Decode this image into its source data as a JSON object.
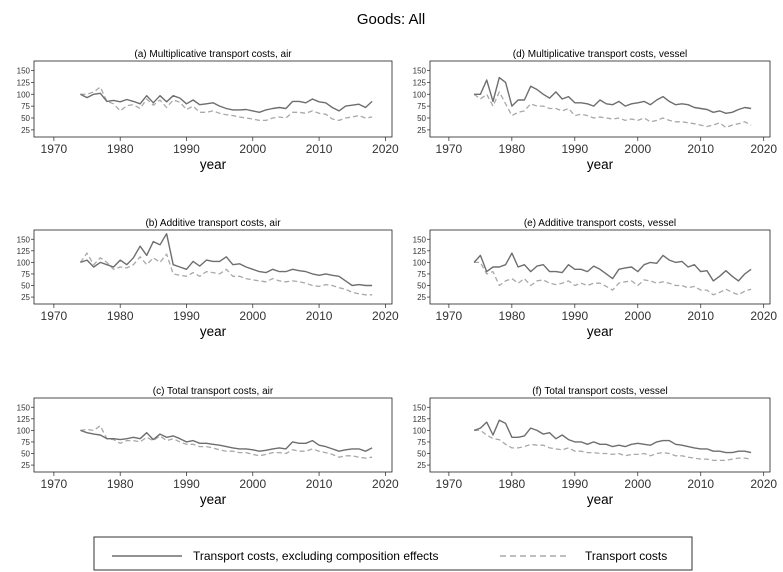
{
  "figure": {
    "title": "Goods: All",
    "legend": {
      "items": [
        {
          "label": "Transport costs, excluding composition effects",
          "color": "#6e6e6e",
          "style": "solid"
        },
        {
          "label": "Transport costs",
          "color": "#a8a8a8",
          "style": "dashed"
        }
      ]
    }
  },
  "chart_data": [
    {
      "type": "line",
      "title": "(a) Multiplicative transport costs, air",
      "xlabel": "year",
      "ylabel": "",
      "xlim": [
        1967,
        2021
      ],
      "ylim": [
        10,
        170
      ],
      "xticks": [
        1970,
        1980,
        1990,
        2000,
        2010,
        2020
      ],
      "yticks": [
        25,
        50,
        75,
        100,
        125,
        150
      ],
      "x_start": 1974,
      "series": [
        {
          "name": "Transport costs, excluding composition effects",
          "values": [
            100,
            93,
            100,
            102,
            85,
            87,
            84,
            89,
            85,
            80,
            97,
            82,
            97,
            84,
            97,
            92,
            80,
            88,
            78,
            80,
            82,
            75,
            70,
            67,
            67,
            68,
            65,
            62,
            67,
            70,
            72,
            70,
            85,
            85,
            82,
            90,
            84,
            82,
            72,
            65,
            75,
            77,
            79,
            72,
            85
          ]
        },
        {
          "name": "Transport costs",
          "values": [
            100,
            100,
            105,
            115,
            85,
            80,
            65,
            76,
            78,
            70,
            90,
            77,
            88,
            72,
            88,
            83,
            68,
            75,
            62,
            62,
            65,
            60,
            57,
            55,
            52,
            50,
            48,
            45,
            45,
            50,
            52,
            50,
            62,
            62,
            60,
            65,
            60,
            58,
            48,
            45,
            50,
            52,
            55,
            50,
            52
          ]
        }
      ]
    },
    {
      "type": "line",
      "title": "(d) Multiplicative transport costs, vessel",
      "xlabel": "year",
      "ylabel": "",
      "xlim": [
        1967,
        2021
      ],
      "ylim": [
        10,
        170
      ],
      "xticks": [
        1970,
        1980,
        1990,
        2000,
        2010,
        2020
      ],
      "yticks": [
        25,
        50,
        75,
        100,
        125,
        150
      ],
      "x_start": 1974,
      "series": [
        {
          "name": "Transport costs, excluding composition effects",
          "values": [
            100,
            100,
            130,
            85,
            135,
            125,
            75,
            88,
            88,
            117,
            110,
            100,
            92,
            105,
            90,
            95,
            82,
            82,
            80,
            75,
            88,
            80,
            78,
            85,
            75,
            80,
            82,
            85,
            78,
            88,
            95,
            85,
            78,
            80,
            78,
            72,
            70,
            68,
            62,
            65,
            60,
            62,
            68,
            72,
            70
          ]
        },
        {
          "name": "Transport costs",
          "values": [
            100,
            90,
            100,
            75,
            105,
            80,
            55,
            62,
            65,
            80,
            75,
            75,
            70,
            70,
            65,
            70,
            55,
            58,
            55,
            50,
            52,
            50,
            48,
            50,
            45,
            48,
            45,
            50,
            42,
            45,
            50,
            45,
            42,
            42,
            40,
            38,
            35,
            32,
            35,
            40,
            30,
            35,
            38,
            42,
            35
          ]
        }
      ]
    },
    {
      "type": "line",
      "title": "(b) Additive transport costs, air",
      "xlabel": "year",
      "ylabel": "",
      "xlim": [
        1967,
        2021
      ],
      "ylim": [
        10,
        170
      ],
      "xticks": [
        1970,
        1980,
        1990,
        2000,
        2010,
        2020
      ],
      "yticks": [
        25,
        50,
        75,
        100,
        125,
        150
      ],
      "x_start": 1974,
      "series": [
        {
          "name": "Transport costs, excluding composition effects",
          "values": [
            100,
            105,
            90,
            100,
            95,
            90,
            105,
            95,
            110,
            135,
            115,
            145,
            138,
            162,
            95,
            90,
            85,
            102,
            92,
            105,
            102,
            102,
            112,
            95,
            97,
            90,
            85,
            80,
            78,
            85,
            80,
            80,
            85,
            82,
            80,
            75,
            72,
            75,
            72,
            70,
            60,
            50,
            52,
            50,
            50
          ]
        },
        {
          "name": "Transport costs",
          "values": [
            100,
            120,
            95,
            110,
            100,
            85,
            90,
            88,
            95,
            112,
            95,
            110,
            100,
            118,
            75,
            72,
            70,
            78,
            70,
            80,
            78,
            75,
            85,
            70,
            70,
            65,
            62,
            60,
            58,
            65,
            60,
            58,
            60,
            58,
            55,
            50,
            48,
            52,
            50,
            45,
            42,
            35,
            32,
            30,
            30
          ]
        }
      ]
    },
    {
      "type": "line",
      "title": "(e) Additive transport costs, vessel",
      "xlabel": "year",
      "ylabel": "",
      "xlim": [
        1967,
        2021
      ],
      "ylim": [
        10,
        170
      ],
      "xticks": [
        1970,
        1980,
        1990,
        2000,
        2010,
        2020
      ],
      "yticks": [
        25,
        50,
        75,
        100,
        125,
        150
      ],
      "x_start": 1974,
      "series": [
        {
          "name": "Transport costs, excluding composition effects",
          "values": [
            100,
            115,
            80,
            90,
            90,
            95,
            120,
            90,
            95,
            80,
            92,
            95,
            80,
            80,
            78,
            95,
            85,
            85,
            80,
            92,
            85,
            75,
            65,
            85,
            88,
            90,
            80,
            95,
            100,
            98,
            115,
            105,
            100,
            102,
            90,
            95,
            80,
            82,
            60,
            70,
            82,
            70,
            60,
            75,
            85
          ]
        },
        {
          "name": "Transport costs",
          "values": [
            100,
            100,
            75,
            80,
            50,
            60,
            65,
            55,
            65,
            50,
            60,
            62,
            55,
            52,
            55,
            60,
            50,
            55,
            50,
            55,
            55,
            48,
            40,
            55,
            58,
            60,
            50,
            62,
            60,
            55,
            58,
            55,
            50,
            50,
            45,
            48,
            40,
            40,
            30,
            35,
            42,
            35,
            30,
            38,
            42
          ]
        }
      ]
    },
    {
      "type": "line",
      "title": "(c) Total transport costs, air",
      "xlabel": "year",
      "ylabel": "",
      "xlim": [
        1967,
        2021
      ],
      "ylim": [
        10,
        170
      ],
      "xticks": [
        1970,
        1980,
        1990,
        2000,
        2010,
        2020
      ],
      "yticks": [
        25,
        50,
        75,
        100,
        125,
        150
      ],
      "x_start": 1974,
      "series": [
        {
          "name": "Transport costs, excluding composition effects",
          "values": [
            100,
            95,
            92,
            90,
            82,
            82,
            80,
            82,
            85,
            82,
            95,
            80,
            92,
            85,
            88,
            82,
            75,
            78,
            72,
            72,
            70,
            68,
            65,
            62,
            60,
            60,
            58,
            55,
            57,
            60,
            62,
            60,
            75,
            72,
            72,
            78,
            68,
            65,
            60,
            55,
            58,
            60,
            60,
            55,
            62
          ]
        },
        {
          "name": "Transport costs",
          "values": [
            100,
            102,
            100,
            110,
            82,
            80,
            72,
            78,
            78,
            75,
            85,
            78,
            88,
            78,
            82,
            75,
            70,
            70,
            65,
            65,
            62,
            58,
            55,
            55,
            52,
            52,
            48,
            45,
            48,
            52,
            52,
            50,
            58,
            55,
            55,
            60,
            55,
            52,
            48,
            42,
            45,
            45,
            42,
            40,
            42
          ]
        }
      ]
    },
    {
      "type": "line",
      "title": "(f) Total transport costs, vessel",
      "xlabel": "year",
      "ylabel": "",
      "xlim": [
        1967,
        2021
      ],
      "ylim": [
        10,
        170
      ],
      "xticks": [
        1970,
        1980,
        1990,
        2000,
        2010,
        2020
      ],
      "yticks": [
        25,
        50,
        75,
        100,
        125,
        150
      ],
      "x_start": 1974,
      "series": [
        {
          "name": "Transport costs, excluding composition effects",
          "values": [
            100,
            105,
            118,
            90,
            122,
            115,
            85,
            85,
            88,
            105,
            100,
            92,
            95,
            82,
            90,
            80,
            75,
            75,
            70,
            75,
            70,
            70,
            65,
            68,
            65,
            70,
            72,
            70,
            68,
            75,
            78,
            78,
            70,
            68,
            65,
            62,
            60,
            60,
            55,
            55,
            52,
            52,
            55,
            55,
            52
          ]
        },
        {
          "name": "Transport costs",
          "values": [
            100,
            100,
            90,
            82,
            80,
            70,
            62,
            62,
            65,
            70,
            68,
            68,
            62,
            60,
            58,
            62,
            55,
            55,
            52,
            52,
            50,
            50,
            48,
            50,
            45,
            48,
            48,
            50,
            45,
            50,
            52,
            50,
            45,
            45,
            42,
            40,
            38,
            38,
            35,
            35,
            35,
            38,
            40,
            40,
            38
          ]
        }
      ]
    }
  ]
}
